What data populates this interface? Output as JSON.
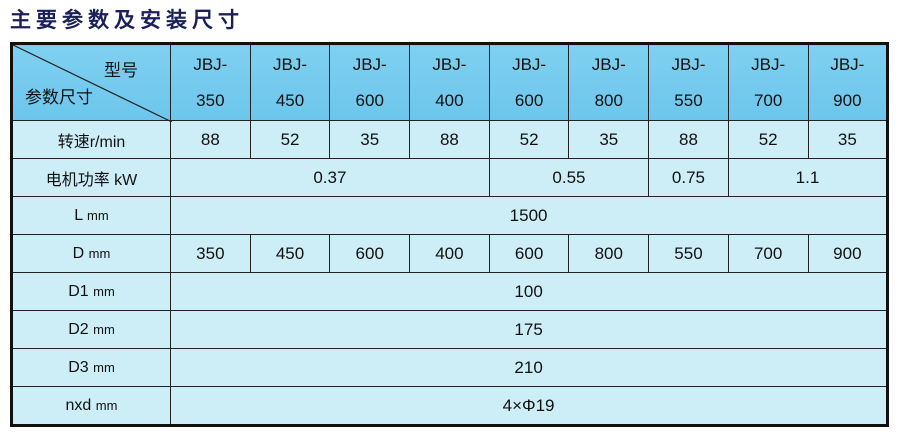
{
  "title": "主要参数及安装尺寸",
  "corner": {
    "top": "型号",
    "bottom": "参数尺寸"
  },
  "models": [
    {
      "prefix": "JBJ-",
      "num": "350"
    },
    {
      "prefix": "JBJ-",
      "num": "450"
    },
    {
      "prefix": "JBJ-",
      "num": "600"
    },
    {
      "prefix": "JBJ-",
      "num": "400"
    },
    {
      "prefix": "JBJ-",
      "num": "600"
    },
    {
      "prefix": "JBJ-",
      "num": "800"
    },
    {
      "prefix": "JBJ-",
      "num": "550"
    },
    {
      "prefix": "JBJ-",
      "num": "700"
    },
    {
      "prefix": "JBJ-",
      "num": "900"
    }
  ],
  "rows": {
    "speed": {
      "label": "转速r/min",
      "values": [
        "88",
        "52",
        "35",
        "88",
        "52",
        "35",
        "88",
        "52",
        "35"
      ]
    },
    "power": {
      "label": "电机功率 kW",
      "values": [
        "0.37",
        "0.55",
        "0.75",
        "1.1"
      ]
    },
    "L": {
      "label": "L",
      "unit": "mm",
      "value": "1500"
    },
    "D": {
      "label": "D",
      "unit": "mm",
      "values": [
        "350",
        "450",
        "600",
        "400",
        "600",
        "800",
        "550",
        "700",
        "900"
      ]
    },
    "D1": {
      "label": "D1",
      "unit": "mm",
      "value": "100"
    },
    "D2": {
      "label": "D2",
      "unit": "mm",
      "value": "175"
    },
    "D3": {
      "label": "D3",
      "unit": "mm",
      "value": "210"
    },
    "nxd": {
      "label": "nxd",
      "unit": "mm",
      "value": "4×Φ19"
    }
  }
}
